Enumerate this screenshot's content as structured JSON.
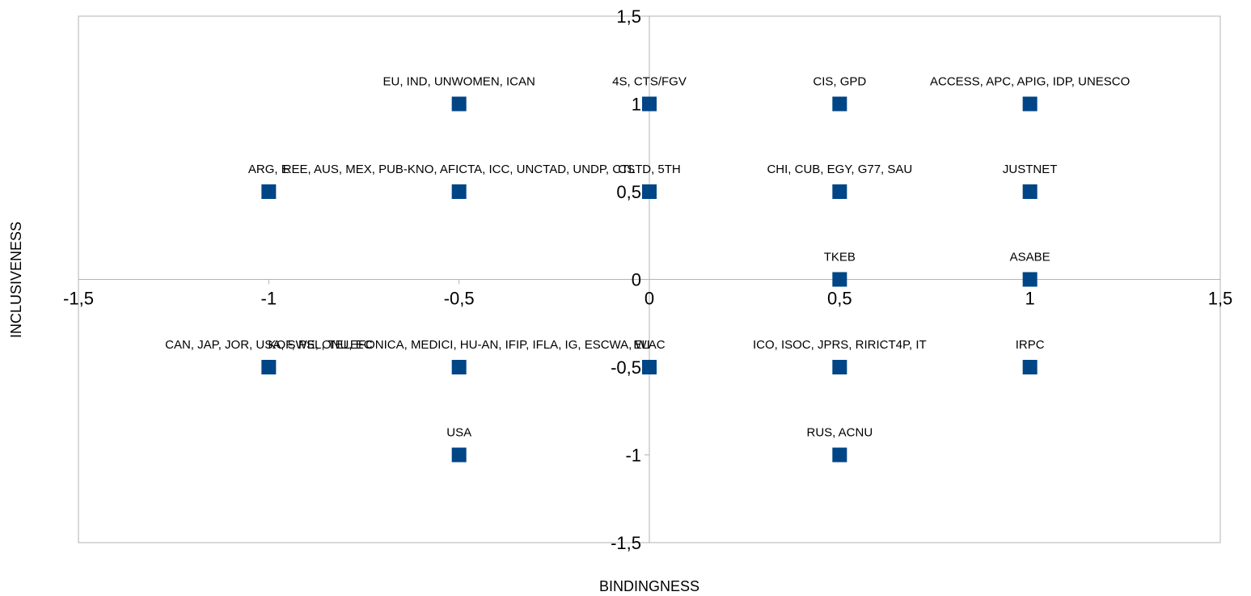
{
  "chart_data": {
    "type": "scatter",
    "title": "",
    "xlabel": "BINDINGNESS",
    "ylabel": "INCLUSIVENESS",
    "xlim": [
      -1.5,
      1.5
    ],
    "ylim": [
      -1.5,
      1.5
    ],
    "x_ticks": [
      "-1,5",
      "-1",
      "-0,5",
      "0",
      "0,5",
      "1",
      "1,5"
    ],
    "y_ticks": [
      "1,5",
      "1",
      "0,5",
      "0",
      "-0,5",
      "-1",
      "-1,5"
    ],
    "x_tick_values": [
      -1.5,
      -1,
      -0.5,
      0,
      0.5,
      1,
      1.5
    ],
    "y_tick_values": [
      1.5,
      1,
      0.5,
      0,
      -0.5,
      -1,
      -1.5
    ],
    "grid": false,
    "legend": "none",
    "marker": "square",
    "marker_color": "#004586",
    "points": [
      {
        "x": -0.5,
        "y": 1,
        "label": "EU, IND, UNWOMEN, ICAN"
      },
      {
        "x": 0,
        "y": 1,
        "label": "4S, CTS/FGV"
      },
      {
        "x": 0.5,
        "y": 1,
        "label": "CIS, GPD"
      },
      {
        "x": 1,
        "y": 1,
        "label": "ACCESS, APC, APIG, IDP, UNESCO"
      },
      {
        "x": -1,
        "y": 0.5,
        "label": "ARG, E"
      },
      {
        "x": -0.5,
        "y": 0.5,
        "label": "REE, AUS, MEX, PUB-KNO, AFICTA, ICC, UNCTAD, UNDP, CTL"
      },
      {
        "x": 0,
        "y": 0.5,
        "label": "CSTD, 5TH"
      },
      {
        "x": 0.5,
        "y": 0.5,
        "label": "CHI, CUB, EGY, G77, SAU"
      },
      {
        "x": 1,
        "y": 0.5,
        "label": "JUSTNET"
      },
      {
        "x": 0.5,
        "y": 0,
        "label": "TKEB"
      },
      {
        "x": 1,
        "y": 0,
        "label": "ASABE"
      },
      {
        "x": -1,
        "y": -0.5,
        "label": "CAN, JAP, JOR, USA, SWE, ONU, EC"
      },
      {
        "x": -0.5,
        "y": -0.5,
        "label": "KOF, PSL, TELEFONICA, MEDICI, HU-AN, IFIP, IFLA, IG, ESCWA, WI"
      },
      {
        "x": 0,
        "y": -0.5,
        "label": "ELAC"
      },
      {
        "x": 0.5,
        "y": -0.5,
        "label": "ICO, ISOC, JPRS, RIRICT4P, IT"
      },
      {
        "x": 1,
        "y": -0.5,
        "label": "IRPC"
      },
      {
        "x": -0.5,
        "y": -1,
        "label": "USA"
      },
      {
        "x": 0.5,
        "y": -1,
        "label": "RUS, ACNU"
      }
    ]
  }
}
